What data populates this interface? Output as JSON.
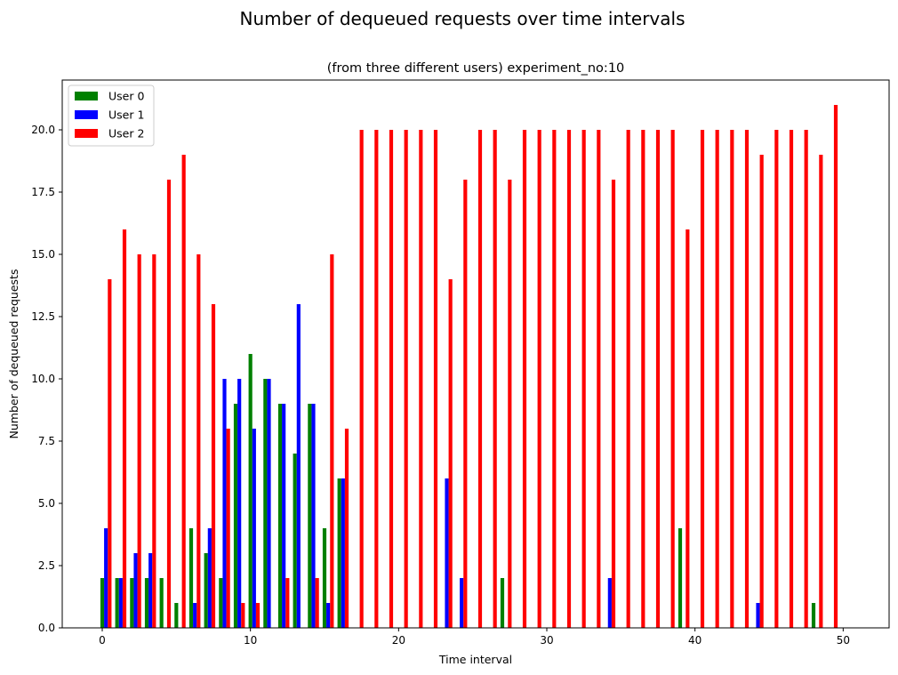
{
  "chart_data": {
    "type": "bar",
    "suptitle": "Number of dequeued requests over time intervals",
    "title": "(from three different users) experiment_no:10",
    "xlabel": "Time interval",
    "ylabel": "Number of dequeued requests",
    "xlim": [
      -2.7,
      53.1
    ],
    "ylim": [
      0,
      22
    ],
    "xticks": [
      0,
      10,
      20,
      30,
      40,
      50
    ],
    "xtick_labels": [
      "0",
      "10",
      "20",
      "30",
      "40",
      "50"
    ],
    "yticks": [
      0,
      2.5,
      5,
      7.5,
      10,
      12.5,
      15,
      17.5,
      20
    ],
    "ytick_labels": [
      "0.0",
      "2.5",
      "5.0",
      "7.5",
      "10.0",
      "12.5",
      "15.0",
      "17.5",
      "20.0"
    ],
    "grid": false,
    "legend_position": "top-left",
    "bar_width": 0.25,
    "series": [
      {
        "name": "User 0",
        "color": "#008000",
        "offset": 0,
        "x": [
          0,
          1,
          2,
          3,
          4,
          5,
          6,
          7,
          8,
          9,
          10,
          11,
          12,
          13,
          14,
          15,
          16,
          27,
          39,
          48
        ],
        "values": [
          2,
          2,
          2,
          2,
          2,
          1,
          4,
          3,
          2,
          9,
          11,
          10,
          9,
          7,
          9,
          4,
          6,
          2,
          4,
          1
        ]
      },
      {
        "name": "User 1",
        "color": "#0000ff",
        "offset": 0.25,
        "x": [
          0,
          1,
          2,
          3,
          6,
          7,
          8,
          9,
          10,
          11,
          12,
          13,
          14,
          15,
          16,
          23,
          24,
          34,
          44
        ],
        "values": [
          4,
          2,
          3,
          3,
          1,
          4,
          10,
          10,
          8,
          10,
          9,
          13,
          9,
          1,
          6,
          6,
          2,
          2,
          1
        ]
      },
      {
        "name": "User 2",
        "color": "#ff0000",
        "offset": 0.5,
        "x": [
          0,
          1,
          2,
          3,
          4,
          5,
          6,
          7,
          8,
          9,
          10,
          12,
          14,
          15,
          16,
          17,
          18,
          19,
          20,
          21,
          22,
          23,
          24,
          25,
          26,
          27,
          28,
          29,
          30,
          31,
          32,
          33,
          34,
          35,
          36,
          37,
          38,
          39,
          40,
          41,
          42,
          43,
          44,
          45,
          46,
          47,
          48,
          49
        ],
        "values": [
          14,
          16,
          15,
          15,
          18,
          19,
          15,
          13,
          8,
          1,
          1,
          2,
          2,
          15,
          8,
          20,
          20,
          20,
          20,
          20,
          20,
          14,
          18,
          20,
          20,
          18,
          20,
          20,
          20,
          20,
          20,
          20,
          18,
          20,
          20,
          20,
          20,
          16,
          20,
          20,
          20,
          20,
          19,
          20,
          20,
          20,
          19,
          21
        ]
      }
    ]
  }
}
